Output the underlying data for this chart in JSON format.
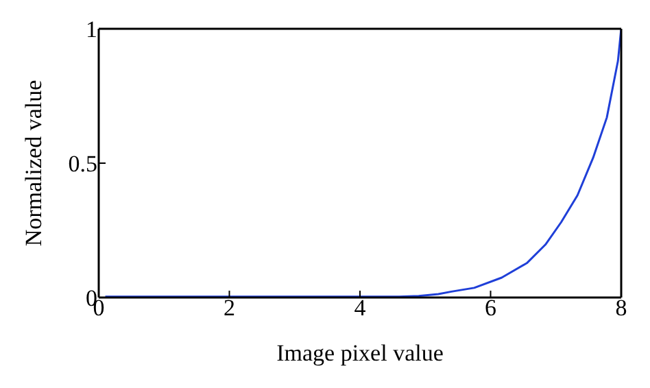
{
  "chart_data": {
    "type": "line",
    "xlabel": "Image pixel value",
    "ylabel": "Normalized value",
    "x": [
      0.1,
      1,
      2,
      3,
      4,
      4.6,
      4.9,
      5.2,
      5.4,
      5.75,
      6.17,
      6.56,
      6.84,
      7.08,
      7.33,
      7.57,
      7.78,
      7.95,
      8
    ],
    "series": [
      {
        "color": "#1f3fd8",
        "values": [
          0.003,
          0.003,
          0.003,
          0.003,
          0.003,
          0.003,
          0.006,
          0.013,
          0.022,
          0.036,
          0.074,
          0.129,
          0.197,
          0.28,
          0.38,
          0.52,
          0.67,
          0.88,
          1
        ]
      }
    ],
    "xlim": [
      0,
      8
    ],
    "ylim": [
      0,
      1
    ],
    "xticks": [
      0,
      2,
      4,
      6,
      8
    ],
    "yticks": [
      0,
      0.5,
      1
    ],
    "grid": false,
    "legend": false,
    "marker": "none",
    "line_style": "solid"
  }
}
